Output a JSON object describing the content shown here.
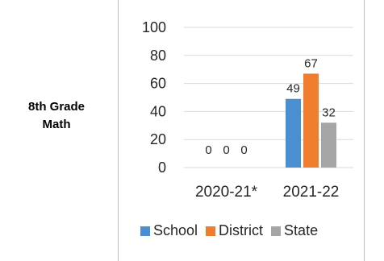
{
  "row_label": {
    "line1": "8th Grade",
    "line2": "Math"
  },
  "chart_data": {
    "type": "bar",
    "categories": [
      "2020-21*",
      "2021-22"
    ],
    "series": [
      {
        "name": "School",
        "values": [
          0,
          49
        ],
        "color": "#4a8fd0"
      },
      {
        "name": "District",
        "values": [
          0,
          67
        ],
        "color": "#ef7d2d"
      },
      {
        "name": "State",
        "values": [
          0,
          32
        ],
        "color": "#a5a5a5"
      }
    ],
    "ylim": [
      0,
      100
    ],
    "yticks": [
      0,
      20,
      40,
      60,
      80,
      100
    ],
    "grid": true,
    "legend": "bottom"
  }
}
